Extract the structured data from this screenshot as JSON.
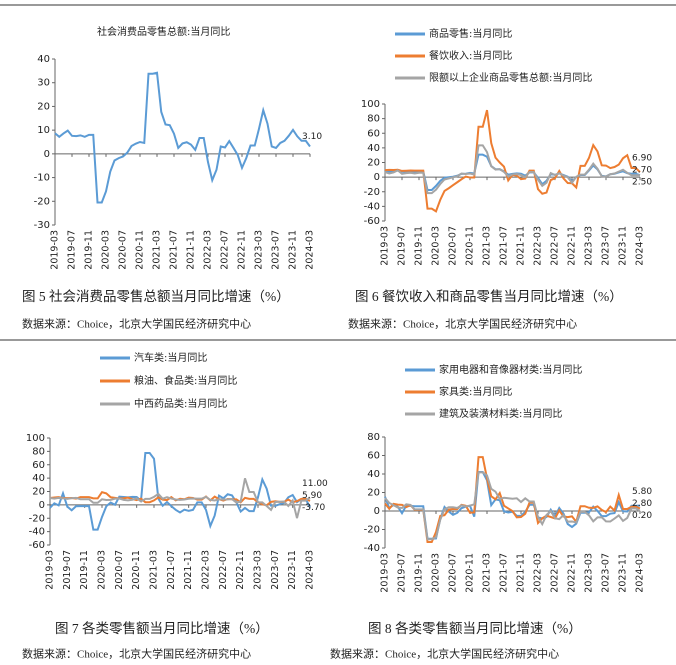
{
  "chart_data": [
    {
      "type": "line",
      "title": "社会消费品零售总额:当月同比",
      "categories": [
        "2019-03",
        null,
        null,
        null,
        "2019-07",
        null,
        null,
        null,
        "2019-11",
        null,
        null,
        null,
        "2020-03",
        null,
        null,
        null,
        "2020-07",
        null,
        null,
        null,
        "2020-11",
        null,
        null,
        null,
        "2021-03",
        null,
        null,
        null,
        "2021-07",
        null,
        null,
        null,
        "2021-11",
        null,
        null,
        null,
        "2022-03",
        null,
        null,
        null,
        "2022-07",
        null,
        null,
        null,
        "2022-11",
        null,
        null,
        null,
        "2023-03",
        null,
        null,
        null,
        "2023-07",
        null,
        null,
        null,
        "2023-11",
        null,
        null,
        null,
        "2024-03"
      ],
      "series": [
        {
          "color": "#5b9bd5",
          "values": [
            8.7,
            7.2,
            8.6,
            9.8,
            7.6,
            7.5,
            7.8,
            7.2,
            8.0,
            8.0,
            -20.5,
            -20.5,
            -15.8,
            -7.5,
            -2.8,
            -1.8,
            -1.1,
            0.5,
            3.3,
            4.3,
            5.0,
            4.6,
            33.8,
            33.8,
            34.2,
            17.7,
            12.4,
            12.1,
            8.5,
            2.5,
            4.4,
            4.9,
            3.9,
            1.7,
            6.7,
            6.7,
            -3.5,
            -11.1,
            -6.7,
            3.1,
            2.7,
            5.4,
            2.5,
            -0.5,
            -5.9,
            -1.8,
            3.5,
            3.5,
            10.6,
            18.4,
            12.7,
            3.1,
            2.5,
            4.6,
            5.5,
            7.6,
            10.1,
            7.4,
            5.5,
            5.5,
            3.1
          ]
        }
      ],
      "ylim": [
        -30,
        40
      ],
      "yticks": [
        -30,
        -20,
        -10,
        0,
        10,
        20,
        30,
        40
      ],
      "annotations": [
        "3.10"
      ],
      "caption": "图 5 社会消费品零售总额当月同比增速（%）",
      "source": "数据来源：Choice，北京大学国民经济研究中心"
    },
    {
      "type": "line",
      "categories": [
        "2019-03",
        null,
        null,
        null,
        "2019-07",
        null,
        null,
        null,
        "2019-11",
        null,
        null,
        null,
        "2020-03",
        null,
        null,
        null,
        "2020-07",
        null,
        null,
        null,
        "2020-11",
        null,
        null,
        null,
        "2021-03",
        null,
        null,
        null,
        "2021-07",
        null,
        null,
        null,
        "2021-11",
        null,
        null,
        null,
        "2022-03",
        null,
        null,
        null,
        "2022-07",
        null,
        null,
        null,
        "2022-11",
        null,
        null,
        null,
        "2023-03",
        null,
        null,
        null,
        "2023-07",
        null,
        null,
        null,
        "2023-11",
        null,
        null,
        null,
        "2024-03"
      ],
      "series": [
        {
          "name": "商品零售:当月同比",
          "color": "#5b9bd5",
          "values": [
            8.5,
            7.0,
            8.5,
            9.8,
            7.5,
            7.4,
            7.7,
            7.0,
            7.9,
            7.9,
            -17.6,
            -17.6,
            -12.0,
            -5.1,
            -0.8,
            -0.2,
            0.5,
            1.9,
            4.5,
            4.7,
            5.8,
            5.0,
            30.7,
            30.7,
            27.9,
            15.1,
            10.9,
            10.7,
            7.9,
            3.3,
            4.5,
            5.1,
            4.7,
            2.0,
            6.5,
            6.5,
            -1.0,
            -9.7,
            -5.0,
            3.9,
            3.2,
            5.1,
            2.9,
            0.5,
            -5.6,
            -0.1,
            2.9,
            2.9,
            9.1,
            15.9,
            10.5,
            1.7,
            1.0,
            4.0,
            4.6,
            6.5,
            8.0,
            5.5,
            4.6,
            4.6,
            2.7
          ]
        },
        {
          "name": "餐饮收入:当月同比",
          "color": "#ed7d31",
          "values": [
            9.5,
            9.9,
            9.7,
            10.1,
            8.5,
            8.8,
            9.1,
            8.9,
            8.9,
            8.9,
            -43.1,
            -43.1,
            -46.8,
            -31.1,
            -18.9,
            -15.2,
            -11.0,
            -7.0,
            -2.9,
            0.8,
            -0.6,
            -0.6,
            68.9,
            68.9,
            91.6,
            46.4,
            26.6,
            20.0,
            14.3,
            -4.5,
            3.1,
            2.0,
            -2.7,
            -2.0,
            8.9,
            8.9,
            -16.4,
            -22.7,
            -21.1,
            -4.0,
            -1.5,
            8.4,
            -1.7,
            -8.1,
            -8.4,
            -14.1,
            15.4,
            15.4,
            26.3,
            43.8,
            35.1,
            16.1,
            15.8,
            12.4,
            13.8,
            17.1,
            25.8,
            30.0,
            12.5,
            12.5,
            6.9
          ]
        },
        {
          "name": "限额以上企业商品零售总额:当月同比",
          "color": "#a5a5a5",
          "values": [
            7.0,
            5.0,
            6.5,
            9.2,
            4.5,
            5.5,
            6.0,
            4.9,
            6.0,
            6.0,
            -21.9,
            -21.9,
            -17.1,
            -9.4,
            -3.2,
            -1.7,
            -0.3,
            1.2,
            4.9,
            4.3,
            4.9,
            3.6,
            43.4,
            43.4,
            34.2,
            14.8,
            10.3,
            10.9,
            7.1,
            1.2,
            3.7,
            4.3,
            2.9,
            -0.1,
            7.0,
            7.0,
            -3.5,
            -11.9,
            -7.7,
            5.6,
            2.9,
            5.4,
            2.1,
            -0.1,
            -7.6,
            0.5,
            3.5,
            3.5,
            10.2,
            18.5,
            11.5,
            1.1,
            0.8,
            3.9,
            4.9,
            7.5,
            10.0,
            5.9,
            2.5,
            2.5,
            2.5
          ]
        }
      ],
      "ylim": [
        -60,
        100
      ],
      "yticks": [
        -60,
        -40,
        -20,
        0,
        20,
        40,
        60,
        80,
        100
      ],
      "annotations": [
        "6.90",
        "2.70",
        "2.50"
      ],
      "caption": "图 6 餐饮收入和商品零售当月同比增速（%）",
      "source": "数据来源：Choice，北京大学国民经济研究中心"
    },
    {
      "type": "line",
      "categories": [
        "2019-03",
        null,
        null,
        null,
        "2019-07",
        null,
        null,
        null,
        "2019-11",
        null,
        null,
        null,
        "2020-03",
        null,
        null,
        null,
        "2020-07",
        null,
        null,
        null,
        "2020-11",
        null,
        null,
        null,
        "2021-03",
        null,
        null,
        null,
        "2021-07",
        null,
        null,
        null,
        "2021-11",
        null,
        null,
        null,
        "2022-03",
        null,
        null,
        null,
        "2022-07",
        null,
        null,
        null,
        "2022-11",
        null,
        null,
        null,
        "2023-03",
        null,
        null,
        null,
        "2023-07",
        null,
        null,
        null,
        "2023-11",
        null,
        null,
        null,
        "2024-03"
      ],
      "series": [
        {
          "name": "汽车类:当月同比",
          "color": "#5b9bd5",
          "values": [
            -4.4,
            2.3,
            -0.8,
            17.2,
            -2.6,
            -8.1,
            -2.1,
            -1.8,
            -1.8,
            -1.8,
            -37.0,
            -37.0,
            -18.1,
            -2.0,
            3.5,
            0.2,
            12.3,
            11.8,
            11.2,
            12.0,
            11.8,
            6.4,
            77.6,
            77.6,
            69.0,
            9.5,
            -1.3,
            4.2,
            -1.8,
            -7.4,
            -11.3,
            -7.2,
            -9.0,
            -7.4,
            3.7,
            3.7,
            -7.5,
            -31.6,
            -16.0,
            13.9,
            9.7,
            15.9,
            14.2,
            3.9,
            -10.0,
            -4.6,
            -9.4,
            -9.4,
            11.5,
            38.0,
            24.2,
            -1.1,
            -1.5,
            1.1,
            2.8,
            11.4,
            14.7,
            4.0,
            8.7,
            8.7,
            -3.7
          ]
        },
        {
          "name": "粮油、食品类:当月同比",
          "color": "#ed7d31",
          "values": [
            10.3,
            11.0,
            11.5,
            10.2,
            10.1,
            10.2,
            9.3,
            11.5,
            11.5,
            11.5,
            9.7,
            9.7,
            19.0,
            17.2,
            11.4,
            10.5,
            9.5,
            9.9,
            10.8,
            8.7,
            7.2,
            9.4,
            4.0,
            4.0,
            6.7,
            11.3,
            7.8,
            7.2,
            11.6,
            6.7,
            9.2,
            8.4,
            10.8,
            10.3,
            7.9,
            7.9,
            12.5,
            6.6,
            12.3,
            8.4,
            6.5,
            8.7,
            8.5,
            8.3,
            3.9,
            10.5,
            9.0,
            9.0,
            4.1,
            0.9,
            -0.7,
            4.5,
            5.5,
            4.5,
            4.5,
            7.9,
            4.1,
            5.6,
            9.0,
            9.0,
            5.9
          ]
        },
        {
          "name": "中西药品类:当月同比",
          "color": "#a5a5a5",
          "values": [
            10.2,
            9.4,
            10.4,
            9.8,
            8.9,
            10.0,
            10.5,
            8.5,
            8.5,
            8.5,
            3.1,
            3.1,
            8.3,
            7.3,
            7.4,
            9.3,
            9.4,
            7.5,
            6.8,
            7.7,
            9.8,
            5.1,
            9.0,
            9.0,
            12.0,
            16.3,
            9.2,
            11.5,
            9.5,
            8.0,
            7.5,
            8.1,
            9.2,
            9.5,
            9.3,
            9.3,
            12.0,
            7.4,
            6.6,
            8.4,
            8.1,
            8.3,
            8.7,
            3.5,
            4.9,
            39.8,
            19.3,
            19.3,
            3.7,
            3.7,
            -1.7,
            -7.5,
            4.3,
            4.6,
            5.0,
            -1.7,
            6.5,
            -19.8,
            6.4,
            6.4,
            11.0
          ]
        }
      ],
      "ylim": [
        -60,
        100
      ],
      "yticks": [
        -60,
        -40,
        -20,
        0,
        20,
        40,
        60,
        80,
        100
      ],
      "annotations": [
        "11.00",
        "5.90",
        "-3.70"
      ],
      "caption": "图 7 各类零售额当月同比增速（%）",
      "source": "数据来源：Choice，北京大学国民经济研究中心"
    },
    {
      "type": "line",
      "categories": [
        "2019-03",
        null,
        null,
        null,
        "2019-07",
        null,
        null,
        null,
        "2019-11",
        null,
        null,
        null,
        "2020-03",
        null,
        null,
        null,
        "2020-07",
        null,
        null,
        null,
        "2020-11",
        null,
        null,
        null,
        "2021-03",
        null,
        null,
        null,
        "2021-07",
        null,
        null,
        null,
        "2021-11",
        null,
        null,
        null,
        "2022-03",
        null,
        null,
        null,
        "2022-07",
        null,
        null,
        null,
        "2022-11",
        null,
        null,
        null,
        "2023-03",
        null,
        null,
        null,
        "2023-07",
        null,
        null,
        null,
        "2023-11",
        null,
        null,
        null,
        "2024-03"
      ],
      "series": [
        {
          "name": "家用电器和音像器材类:当月同比",
          "color": "#5b9bd5",
          "values": [
            15.4,
            3.2,
            6.5,
            4.7,
            -2.4,
            5.8,
            5.6,
            5.2,
            5.2,
            5.2,
            -30.0,
            -30.0,
            -29.7,
            -8.5,
            4.3,
            -0.6,
            -4.1,
            -2.0,
            3.1,
            4.7,
            5.6,
            -6.1,
            42.1,
            42.1,
            33.2,
            6.3,
            12.5,
            11.6,
            -0.4,
            -1.6,
            -0.8,
            -5.3,
            -5.2,
            -0.9,
            6.7,
            6.7,
            -6.8,
            -8.1,
            -6.5,
            1.4,
            -6.0,
            3.2,
            -2.9,
            -14.1,
            -17.3,
            -13.6,
            -1.9,
            -1.9,
            -1.4,
            4.7,
            0.1,
            -5.5,
            -5.5,
            -2.9,
            -2.3,
            9.6,
            -0.3,
            -0.5,
            5.7,
            5.7,
            5.8
          ]
        },
        {
          "name": "家具类:当月同比",
          "color": "#ed7d31",
          "values": [
            8.1,
            2.4,
            7.7,
            6.9,
            6.6,
            4.2,
            6.4,
            1.2,
            1.2,
            1.2,
            -33.5,
            -33.5,
            -22.7,
            -5.4,
            -4.5,
            1.4,
            2.3,
            2.2,
            6.6,
            5.7,
            -1.9,
            -1.6,
            58.2,
            58.2,
            35.3,
            15.9,
            12.6,
            19.4,
            5.7,
            2.8,
            -0.1,
            -6.9,
            -6.5,
            -3.0,
            9.0,
            9.0,
            -13.0,
            -7.9,
            -5.1,
            -6.5,
            -8.0,
            0.6,
            -6.0,
            -6.6,
            -5.8,
            -11.6,
            5.2,
            5.2,
            3.5,
            3.4,
            5.0,
            1.2,
            -1.2,
            4.8,
            0.5,
            17.3,
            2.2,
            2.1,
            4.6,
            4.6,
            2.8
          ]
        },
        {
          "name": "建筑及装潢材料类:当月同比",
          "color": "#a5a5a5",
          "values": [
            14.0,
            8.7,
            6.3,
            3.8,
            3.3,
            7.3,
            6.6,
            1.7,
            1.7,
            1.7,
            -30.5,
            -30.5,
            -28.3,
            -9.5,
            1.9,
            4.0,
            4.1,
            3.3,
            6.1,
            4.9,
            5.9,
            7.2,
            41.8,
            41.8,
            38.5,
            23.9,
            20.9,
            13.0,
            14.3,
            13.8,
            13.3,
            13.8,
            9.7,
            13.7,
            10.2,
            10.2,
            -6.6,
            -14.2,
            -4.3,
            0.0,
            -7.8,
            -8.8,
            -4.4,
            -11.5,
            -11.4,
            -12.3,
            -0.9,
            -0.9,
            -4.7,
            -11.2,
            -6.9,
            -6.8,
            -11.2,
            -11.4,
            -8.2,
            -4.8,
            -10.7,
            -7.5,
            2.8,
            2.8,
            0.2
          ]
        }
      ],
      "ylim": [
        -40,
        80
      ],
      "yticks": [
        -40,
        -20,
        0,
        20,
        40,
        60,
        80
      ],
      "annotations": [
        "5.80",
        "2.80",
        "0.20"
      ],
      "caption": "图 8 各类零售额当月同比增速（%）",
      "source": "数据来源：Choice，北京大学国民经济研究中心"
    }
  ]
}
